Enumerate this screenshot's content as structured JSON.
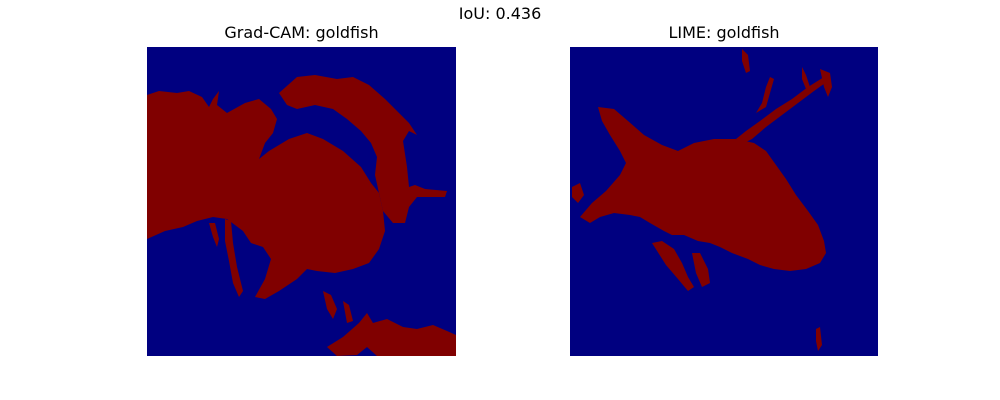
{
  "figure": {
    "suptitle": "IoU: 0.436"
  },
  "colors": {
    "background_mask": "#000080",
    "foreground_mask": "#800000"
  },
  "chart_data": [
    {
      "type": "heatmap",
      "title": "Grad-CAM: goldfish",
      "description_values": {
        "binary_mask": true,
        "classes": [
          0,
          1
        ]
      },
      "colormap": [
        "#000080",
        "#800000"
      ],
      "grid": false,
      "axes_visible": false
    },
    {
      "type": "heatmap",
      "title": "LIME: goldfish",
      "description_values": {
        "binary_mask": true,
        "classes": [
          0,
          1
        ]
      },
      "colormap": [
        "#000080",
        "#800000"
      ],
      "grid": false,
      "axes_visible": false
    }
  ]
}
